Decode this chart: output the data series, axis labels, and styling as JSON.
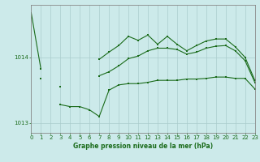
{
  "xlabel": "Graphe pression niveau de la mer (hPa)",
  "hours": [
    0,
    1,
    2,
    3,
    4,
    5,
    6,
    7,
    8,
    9,
    10,
    11,
    12,
    13,
    14,
    15,
    16,
    17,
    18,
    19,
    20,
    21,
    22,
    23
  ],
  "upper": [
    1014.68,
    1013.82,
    null,
    null,
    null,
    null,
    null,
    1013.97,
    1014.08,
    1014.18,
    1014.32,
    1014.26,
    1014.34,
    1014.2,
    1014.32,
    1014.2,
    1014.1,
    1014.18,
    1014.25,
    1014.28,
    1014.28,
    1014.16,
    1014.0,
    1013.65
  ],
  "middle": [
    null,
    1013.68,
    null,
    1013.55,
    null,
    null,
    null,
    1013.72,
    1013.78,
    1013.87,
    1013.98,
    1014.02,
    1014.1,
    1014.14,
    1014.14,
    1014.12,
    1014.05,
    1014.08,
    1014.14,
    1014.17,
    1014.18,
    1014.1,
    1013.95,
    1013.62
  ],
  "lower": [
    null,
    null,
    null,
    1013.28,
    1013.25,
    1013.25,
    1013.2,
    1013.1,
    1013.5,
    1013.58,
    1013.6,
    1013.6,
    1013.62,
    1013.65,
    1013.65,
    1013.65,
    1013.67,
    1013.67,
    1013.68,
    1013.7,
    1013.7,
    1013.68,
    1013.68,
    1013.52
  ],
  "line_color": "#1a6b1a",
  "bg_color": "#cceaea",
  "grid_color": "#aacccc",
  "ylim": [
    1012.85,
    1014.8
  ],
  "yticks": [
    1013,
    1014
  ],
  "xlim": [
    0,
    23
  ]
}
